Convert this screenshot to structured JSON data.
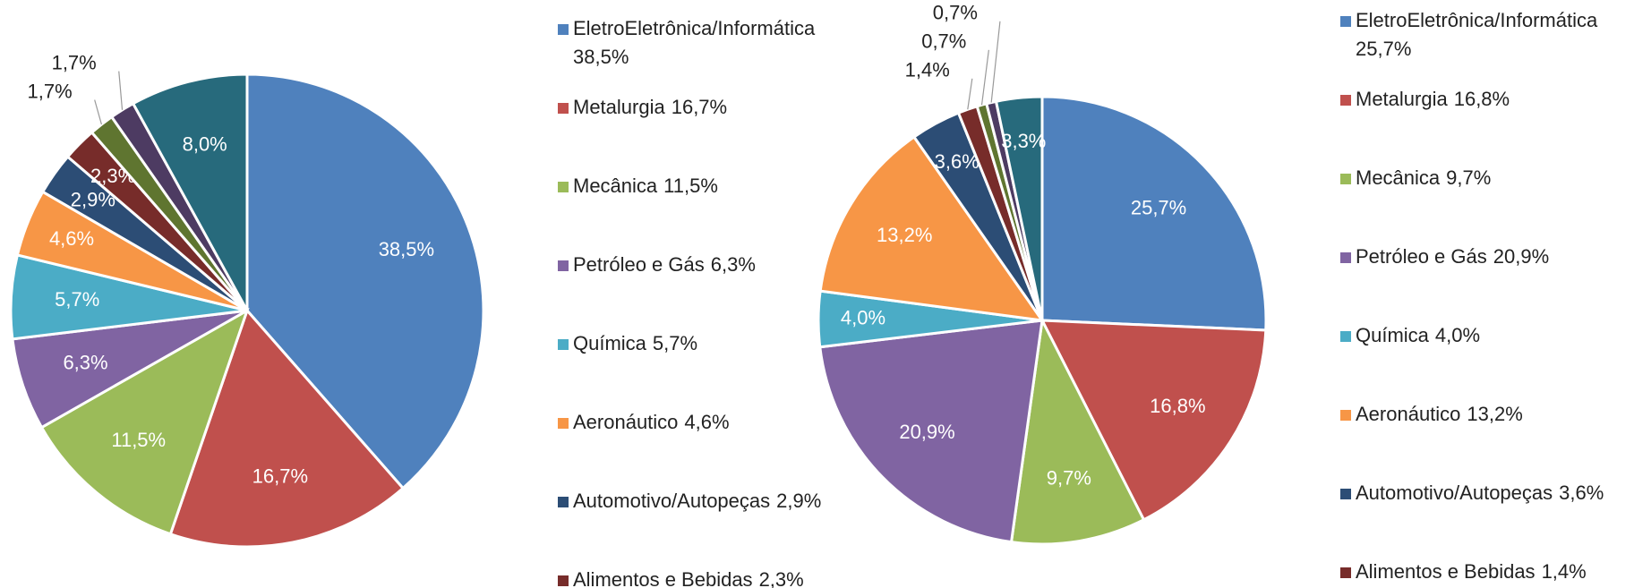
{
  "chart_data": [
    {
      "type": "pie",
      "categories": [
        "EletroEletrônica/Informática",
        "Metalurgia",
        "Mecânica",
        "Petróleo e Gás",
        "Química",
        "Aeronáutico",
        "Automotivo/Autopeças",
        "Alimentos e Bebidas",
        null,
        null,
        null
      ],
      "values": [
        38.5,
        16.7,
        11.5,
        6.3,
        5.7,
        4.6,
        2.9,
        2.3,
        1.7,
        1.7,
        8.0
      ],
      "value_labels": [
        "38,5%",
        "16,7%",
        "11,5%",
        "6,3%",
        "5,7%",
        "4,6%",
        "2,9%",
        "2,3%",
        "1,7%",
        "1,7%",
        "8,0%"
      ],
      "colors": [
        "#4f81bd",
        "#c0504d",
        "#9bbb59",
        "#8064a2",
        "#4bacc6",
        "#f79646",
        "#2c4d75",
        "#772c2a",
        "#5f7530",
        "#4d3b62",
        "#276a7c"
      ]
    },
    {
      "type": "pie",
      "categories": [
        "EletroEletrônica/Informática",
        "Metalurgia",
        "Mecânica",
        "Petróleo e Gás",
        "Química",
        "Aeronáutico",
        "Automotivo/Autopeças",
        "Alimentos e Bebidas",
        null,
        null,
        null
      ],
      "values": [
        25.7,
        16.8,
        9.7,
        20.9,
        4.0,
        13.2,
        3.6,
        1.4,
        0.7,
        0.7,
        3.3
      ],
      "value_labels": [
        "25,7%",
        "16,8%",
        "9,7%",
        "20,9%",
        "4,0%",
        "13,2%",
        "3,6%",
        "1,4%",
        "0,7%",
        "0,7%",
        "3,3%"
      ],
      "colors": [
        "#4f81bd",
        "#c0504d",
        "#9bbb59",
        "#8064a2",
        "#4bacc6",
        "#f79646",
        "#2c4d75",
        "#772c2a",
        "#5f7530",
        "#4d3b62",
        "#276a7c"
      ]
    }
  ]
}
